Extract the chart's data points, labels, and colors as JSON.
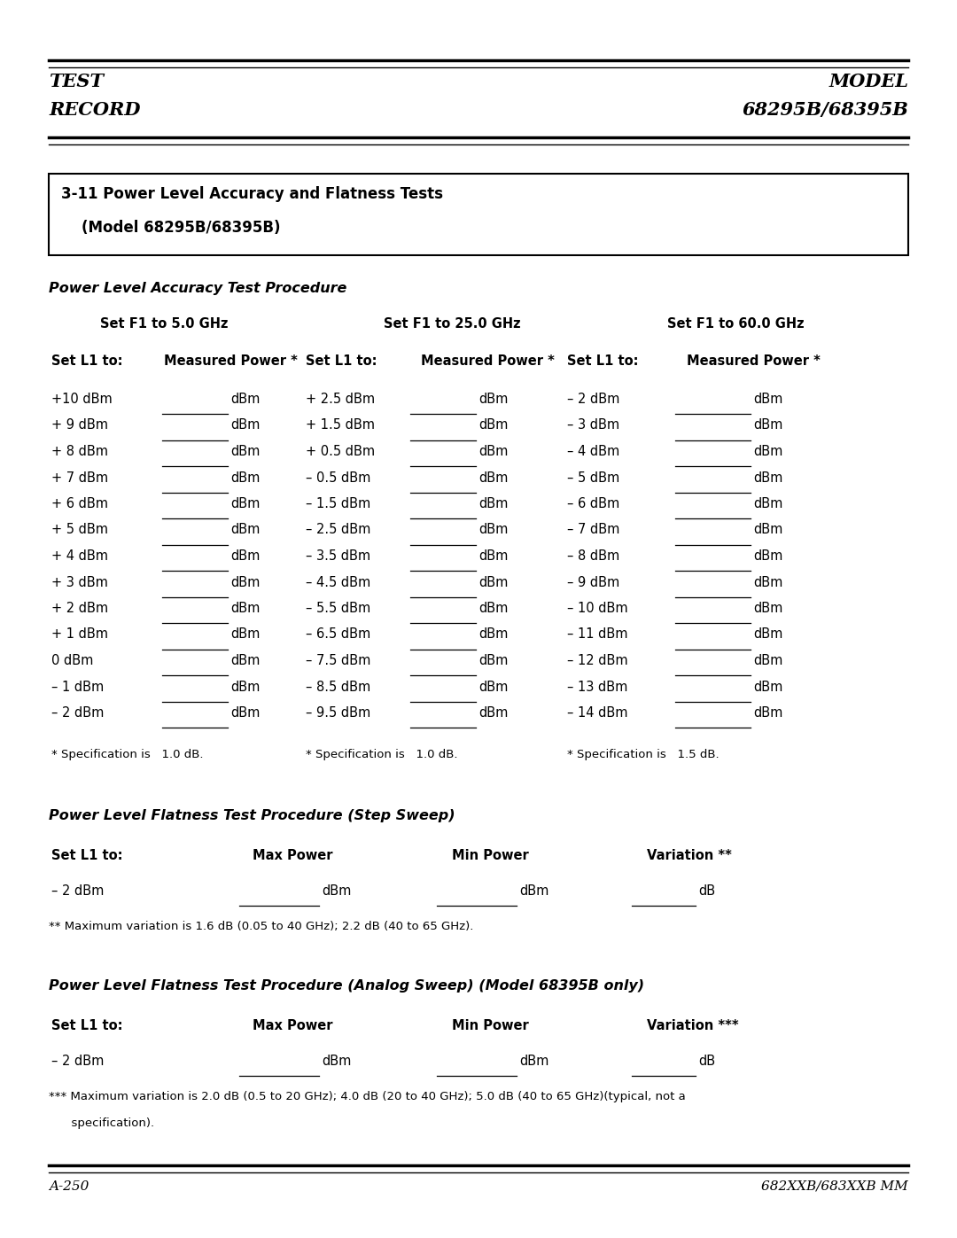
{
  "page_bg": "#ffffff",
  "header_left": [
    "TEST",
    "RECORD"
  ],
  "header_right": [
    "MODEL",
    "68295B/68395B"
  ],
  "footer_left": "A-250",
  "footer_right": "682XXB/683XXB MM",
  "box_title_line1": "3-11 Power Level Accuracy and Flatness Tests",
  "box_title_line2": "    (Model 68295B/68395B)",
  "section1_title": "Power Level Accuracy Test Procedure",
  "col1_header": "Set F1 to 5.0 GHz",
  "col2_header": "Set F1 to 25.0 GHz",
  "col3_header": "Set F1 to 60.0 GHz",
  "subheader_set": "Set L1 to:",
  "subheader_meas": "Measured Power *",
  "col1_rows": [
    "+10 dBm",
    "+ 9 dBm",
    "+ 8 dBm",
    "+ 7 dBm",
    "+ 6 dBm",
    "+ 5 dBm",
    "+ 4 dBm",
    "+ 3 dBm",
    "+ 2 dBm",
    "+ 1 dBm",
    "0 dBm",
    "– 1 dBm",
    "– 2 dBm"
  ],
  "col2_rows": [
    "+ 2.5 dBm",
    "+ 1.5 dBm",
    "+ 0.5 dBm",
    "– 0.5 dBm",
    "– 1.5 dBm",
    "– 2.5 dBm",
    "– 3.5 dBm",
    "– 4.5 dBm",
    "– 5.5 dBm",
    "– 6.5 dBm",
    "– 7.5 dBm",
    "– 8.5 dBm",
    "– 9.5 dBm"
  ],
  "col3_rows": [
    "– 2 dBm",
    "– 3 dBm",
    "– 4 dBm",
    "– 5 dBm",
    "– 6 dBm",
    "– 7 dBm",
    "– 8 dBm",
    "– 9 dBm",
    "– 10 dBm",
    "– 11 dBm",
    "– 12 dBm",
    "– 13 dBm",
    "– 14 dBm"
  ],
  "spec_note1": "* Specification is   1.0 dB.",
  "spec_note2": "* Specification is   1.0 dB.",
  "spec_note3": "* Specification is   1.5 dB.",
  "section2_title": "Power Level Flatness Test Procedure (Step Sweep)",
  "flatness_headers": [
    "Set L1 to:",
    "Max Power",
    "Min Power",
    "Variation **"
  ],
  "flatness_row": [
    "– 2 dBm",
    "dBm",
    "dBm",
    "dB"
  ],
  "flatness_note": "** Maximum variation is 1.6 dB (0.05 to 40 GHz); 2.2 dB (40 to 65 GHz).",
  "section3_title": "Power Level Flatness Test Procedure (Analog Sweep) (Model 68395B only)",
  "flatness2_headers": [
    "Set L1 to:",
    "Max Power",
    "Min Power",
    "Variation ***"
  ],
  "flatness2_row": [
    "– 2 dBm",
    "dBm",
    "dBm",
    "dB"
  ],
  "flatness2_note_line1": "*** Maximum variation is 2.0 dB (0.5 to 20 GHz); 4.0 dB (20 to 40 GHz); 5.0 dB (40 to 65 GHz)(typical, not a",
  "flatness2_note_line2": "      specification)."
}
